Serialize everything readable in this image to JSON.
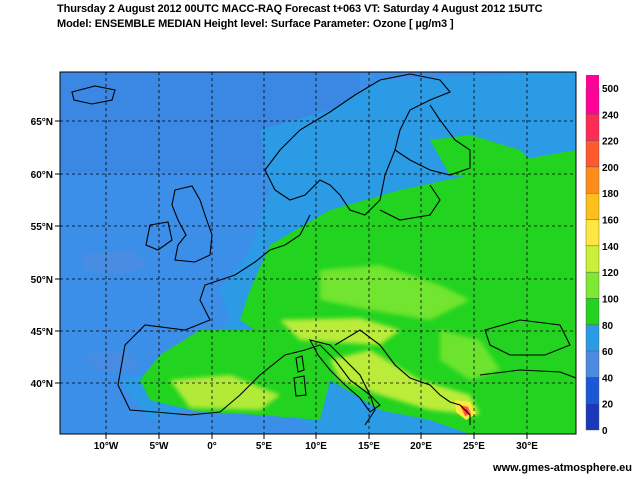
{
  "header": {
    "line1": "Thursday 2 August 2012 00UTC MACC-RAQ Forecast t+063 VT: Saturday 4 August 2012 15UTC",
    "line2": "Model: ENSEMBLE MEDIAN  Height level: Surface  Parameter: Ozone [ µg/m3 ]"
  },
  "axes": {
    "lat_labels": [
      "65°N",
      "60°N",
      "55°N",
      "50°N",
      "45°N",
      "40°N"
    ],
    "lon_labels": [
      "10°W",
      "5°W",
      "0°",
      "5°E",
      "10°E",
      "15°E",
      "20°E",
      "25°E",
      "30°E"
    ]
  },
  "legend": {
    "levels": [
      "500",
      "240",
      "220",
      "200",
      "180",
      "160",
      "140",
      "120",
      "100",
      "80",
      "60",
      "40",
      "20",
      "0"
    ],
    "colors": [
      "#ff0099",
      "#ff2a55",
      "#ff5a2e",
      "#ff8c1a",
      "#ffbf1a",
      "#ffe640",
      "#ccef3c",
      "#7fe833",
      "#22d41f",
      "#2c9be6",
      "#4d8be0",
      "#1b58d8",
      "#1a39b8",
      "#0f2187"
    ]
  },
  "map": {
    "background_color": "#3c8fe8"
  },
  "footer": {
    "credit": "www.gmes-atmosphere.eu"
  }
}
